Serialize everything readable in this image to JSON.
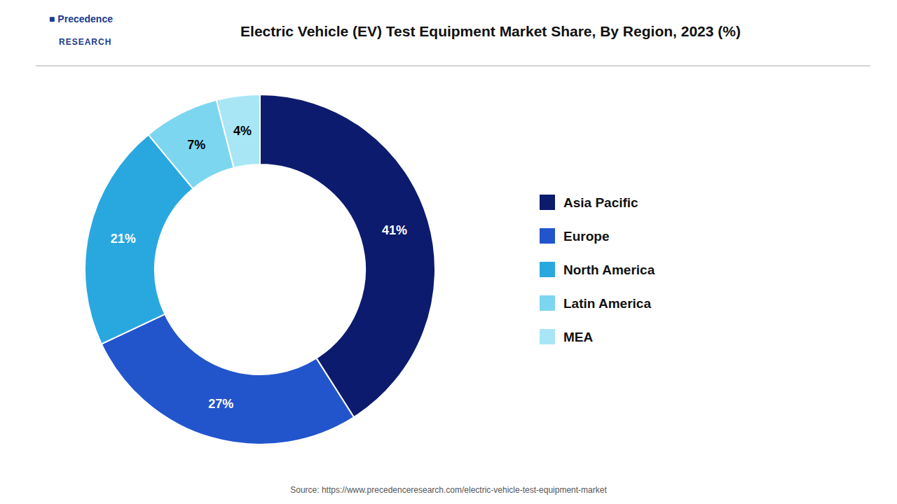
{
  "chart_data": {
    "type": "donut",
    "title": "Electric Vehicle (EV) Test Equipment Market Share, By Region, 2023 (%)",
    "categories": [
      "Asia Pacific",
      "Europe",
      "North America",
      "Latin America",
      "MEA"
    ],
    "values": [
      41,
      27,
      21,
      7,
      4
    ],
    "value_labels": [
      "41%",
      "27%",
      "21%",
      "7%",
      "4%"
    ],
    "colors": [
      "#0d1b6e",
      "#2255cc",
      "#29a8e0",
      "#7dd6f0",
      "#a8e6f5"
    ],
    "data_labels": true,
    "legend": "right",
    "annotations": [
      "■ Precedence",
      "RESEARCH",
      "Source: https://www.precedenceresearch.com/electric-vehicle-test-equipment-market"
    ]
  }
}
